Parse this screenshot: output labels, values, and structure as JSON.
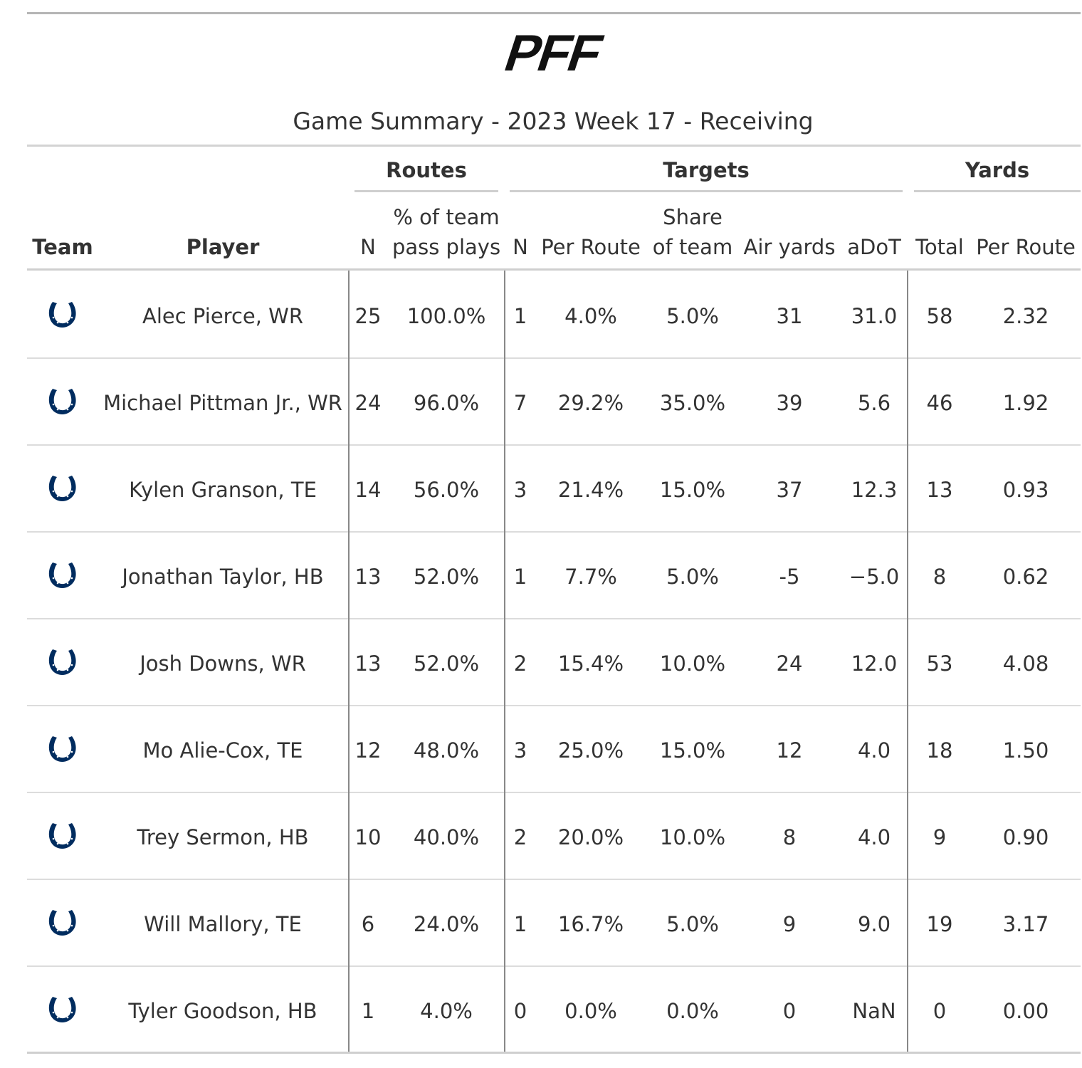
{
  "logo": "PFF",
  "title": "Game Summary - 2023 Week 17 - Receiving",
  "spanners": [
    "Routes",
    "Targets",
    "Yards"
  ],
  "columns": [
    [
      "Team"
    ],
    [
      "Player"
    ],
    [
      "N"
    ],
    [
      "% of team",
      "pass plays"
    ],
    [
      "N"
    ],
    [
      "Per Route"
    ],
    [
      "Share",
      "of team"
    ],
    [
      "Air yards"
    ],
    [
      "aDoT"
    ],
    [
      "Total"
    ],
    [
      "Per Route"
    ]
  ],
  "rows": [
    [
      "Alec Pierce, WR",
      "25",
      "100.0%",
      "1",
      "4.0%",
      "5.0%",
      "31",
      "31.0",
      "58",
      "2.32"
    ],
    [
      "Michael Pittman Jr., WR",
      "24",
      "96.0%",
      "7",
      "29.2%",
      "35.0%",
      "39",
      "5.6",
      "46",
      "1.92"
    ],
    [
      "Kylen Granson, TE",
      "14",
      "56.0%",
      "3",
      "21.4%",
      "15.0%",
      "37",
      "12.3",
      "13",
      "0.93"
    ],
    [
      "Jonathan Taylor, HB",
      "13",
      "52.0%",
      "1",
      "7.7%",
      "5.0%",
      "-5",
      "−5.0",
      "8",
      "0.62"
    ],
    [
      "Josh Downs, WR",
      "13",
      "52.0%",
      "2",
      "15.4%",
      "10.0%",
      "24",
      "12.0",
      "53",
      "4.08"
    ],
    [
      "Mo Alie-Cox, TE",
      "12",
      "48.0%",
      "3",
      "25.0%",
      "15.0%",
      "12",
      "4.0",
      "18",
      "1.50"
    ],
    [
      "Trey Sermon, HB",
      "10",
      "40.0%",
      "2",
      "20.0%",
      "10.0%",
      "8",
      "4.0",
      "9",
      "0.90"
    ],
    [
      "Will Mallory, TE",
      "6",
      "24.0%",
      "1",
      "16.7%",
      "5.0%",
      "9",
      "9.0",
      "19",
      "3.17"
    ],
    [
      "Tyler Goodson, HB",
      "1",
      "4.0%",
      "0",
      "0.0%",
      "0.0%",
      "0",
      "NaN",
      "0",
      "0.00"
    ]
  ]
}
